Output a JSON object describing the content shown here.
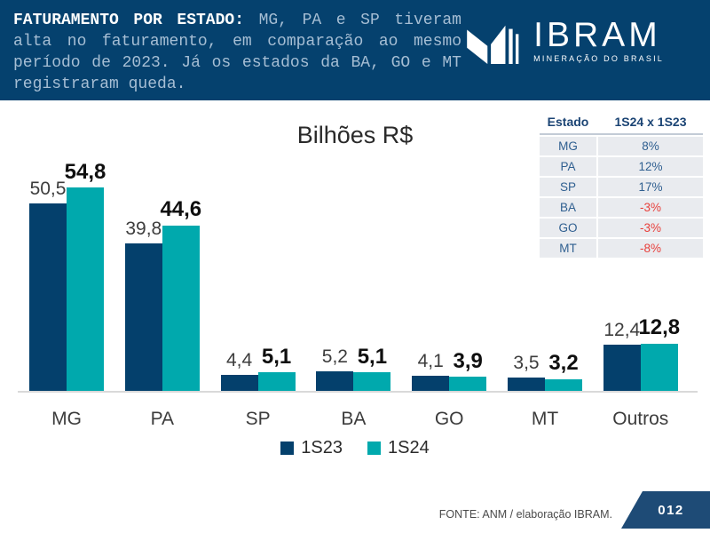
{
  "header": {
    "title_bold": "FATURAMENTO POR ESTADO:",
    "title_rest": "MG, PA e SP tiveram alta no faturamento, em comparação ao mesmo período de 2023. Já os estados da BA, GO e MT registraram queda.",
    "logo": {
      "text": "IBRAM",
      "tagline": "MINERAÇÃO DO BRASIL"
    }
  },
  "chart_data": {
    "type": "bar",
    "title": "Bilhões R$",
    "categories": [
      "MG",
      "PA",
      "SP",
      "BA",
      "GO",
      "MT",
      "Outros"
    ],
    "series": [
      {
        "name": "1S23",
        "color": "#04406C",
        "values": [
          50.5,
          39.8,
          4.4,
          5.2,
          4.1,
          3.5,
          12.4
        ],
        "labels": [
          "50,5",
          "39,8",
          "4,4",
          "5,2",
          "4,1",
          "3,5",
          "12,4"
        ]
      },
      {
        "name": "1S24",
        "color": "#00A9AD",
        "values": [
          54.8,
          44.6,
          5.1,
          5.1,
          3.9,
          3.2,
          12.8
        ],
        "labels": [
          "54,8",
          "44,6",
          "5,1",
          "5,1",
          "3,9",
          "3,2",
          "12,8"
        ]
      }
    ],
    "xlabel": "",
    "ylabel": "",
    "ylim": [
      0,
      60
    ],
    "grid": false,
    "legend_position": "bottom"
  },
  "comparison_table": {
    "headers": [
      "Estado",
      "1S24 x 1S23"
    ],
    "rows": [
      {
        "estado": "MG",
        "variacao": "8%",
        "queda": false
      },
      {
        "estado": "PA",
        "variacao": "12%",
        "queda": false
      },
      {
        "estado": "SP",
        "variacao": "17%",
        "queda": false
      },
      {
        "estado": "BA",
        "variacao": "-3%",
        "queda": true
      },
      {
        "estado": "GO",
        "variacao": "-3%",
        "queda": true
      },
      {
        "estado": "MT",
        "variacao": "-8%",
        "queda": true
      }
    ]
  },
  "footer": {
    "source": "FONTE: ANM / elaboração IBRAM.",
    "page_number": "012"
  },
  "colors": {
    "header_bg": "#05416E",
    "navy": "#04406C",
    "teal": "#00A9AD",
    "negative_red": "#E8403C",
    "table_blue": "#2F5F90",
    "axis_line": "#D9D9D9"
  }
}
